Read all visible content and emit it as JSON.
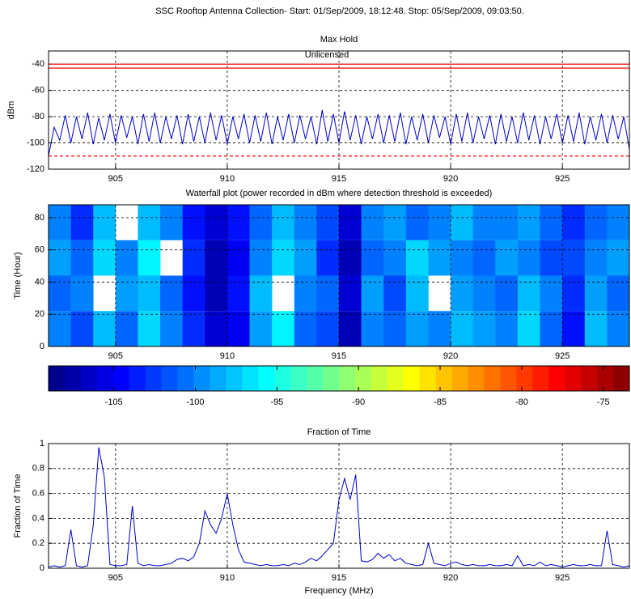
{
  "title": "SSC Rooftop Antenna Collection- Start: 01/Sep/2009, 18:12:48. Stop:  05/Sep/2009, 09:03:50.",
  "chart_data": [
    {
      "type": "line",
      "title": "Max Hold",
      "ylabel": "dBm",
      "annotation": "Unlicensed",
      "x": [
        902,
        902.25,
        902.5,
        902.75,
        903,
        903.25,
        903.5,
        903.75,
        904,
        904.25,
        904.5,
        904.75,
        905,
        905.25,
        905.5,
        905.75,
        906,
        906.25,
        906.5,
        906.75,
        907,
        907.25,
        907.5,
        907.75,
        908,
        908.25,
        908.5,
        908.75,
        909,
        909.25,
        909.5,
        909.75,
        910,
        910.25,
        910.5,
        910.75,
        911,
        911.25,
        911.5,
        911.75,
        912,
        912.25,
        912.5,
        912.75,
        913,
        913.25,
        913.5,
        913.75,
        914,
        914.25,
        914.5,
        914.75,
        915,
        915.25,
        915.5,
        915.75,
        916,
        916.25,
        916.5,
        916.75,
        917,
        917.25,
        917.5,
        917.75,
        918,
        918.25,
        918.5,
        918.75,
        919,
        919.25,
        919.5,
        919.75,
        920,
        920.25,
        920.5,
        920.75,
        921,
        921.25,
        921.5,
        921.75,
        922,
        922.25,
        922.5,
        922.75,
        923,
        923.25,
        923.5,
        923.75,
        924,
        924.25,
        924.5,
        924.75,
        925,
        925.25,
        925.5,
        925.75,
        926,
        926.25,
        926.5,
        926.75,
        927,
        927.25,
        927.5,
        927.75,
        928
      ],
      "values": [
        -110,
        -88,
        -98,
        -79,
        -100,
        -80,
        -97,
        -77,
        -101,
        -81,
        -98,
        -78,
        -100,
        -79,
        -96,
        -80,
        -101,
        -78,
        -99,
        -77,
        -100,
        -80,
        -97,
        -79,
        -101,
        -78,
        -99,
        -80,
        -100,
        -77,
        -98,
        -79,
        -101,
        -80,
        -97,
        -78,
        -100,
        -79,
        -99,
        -77,
        -101,
        -80,
        -98,
        -78,
        -100,
        -79,
        -97,
        -80,
        -101,
        -75,
        -99,
        -78,
        -100,
        -76,
        -98,
        -79,
        -101,
        -80,
        -97,
        -78,
        -100,
        -79,
        -99,
        -77,
        -101,
        -80,
        -98,
        -78,
        -100,
        -79,
        -96,
        -80,
        -101,
        -78,
        -99,
        -77,
        -100,
        -80,
        -97,
        -79,
        -101,
        -78,
        -99,
        -80,
        -100,
        -77,
        -98,
        -79,
        -101,
        -80,
        -97,
        -78,
        -100,
        -79,
        -99,
        -77,
        -101,
        -80,
        -98,
        -78,
        -100,
        -79,
        -97,
        -80,
        -105
      ],
      "color": "#0000cc",
      "reference_lines": [
        {
          "value": -40,
          "color": "#ff0000",
          "style": "solid"
        },
        {
          "value": -43,
          "color": "#ff0000",
          "style": "solid"
        },
        {
          "value": -110,
          "color": "#ff0000",
          "style": "dashed"
        }
      ],
      "xlim": [
        902,
        928
      ],
      "xticks": [
        905,
        910,
        915,
        920,
        925
      ],
      "ylim": [
        -120,
        -30
      ],
      "yticks": [
        -120,
        -100,
        -80,
        -60,
        -40
      ],
      "grid": true
    },
    {
      "type": "heatmap",
      "title": "Waterfall plot (power recorded in dBm where detection threshold is exceeded)",
      "ylabel": "Time (Hour)",
      "x_bins": [
        902,
        903,
        904,
        905,
        906,
        907,
        908,
        909,
        910,
        911,
        912,
        913,
        914,
        915,
        916,
        917,
        918,
        919,
        920,
        921,
        922,
        923,
        924,
        925,
        926,
        927,
        928
      ],
      "y_bins": [
        0,
        22,
        44,
        66,
        88
      ],
      "z": [
        [
          -100,
          -102,
          -98,
          -101,
          -97,
          -100,
          -103,
          -106,
          -105,
          -99,
          -96,
          -101,
          -102,
          -107,
          -100,
          -101,
          -99,
          -100,
          -98,
          -99,
          -100,
          -97,
          -101,
          -104,
          -98,
          -100
        ],
        [
          -101,
          -100,
          null,
          -99,
          -98,
          -101,
          -104,
          -107,
          -104,
          -98,
          null,
          -100,
          -101,
          -106,
          -99,
          -102,
          -98,
          null,
          -99,
          -100,
          -101,
          -98,
          -100,
          -103,
          -99,
          -101
        ],
        [
          -99,
          -101,
          -97,
          -100,
          -96,
          null,
          -103,
          -107,
          -105,
          -100,
          -97,
          -99,
          -103,
          -107,
          -101,
          -100,
          -97,
          -99,
          -100,
          -101,
          -99,
          -100,
          -102,
          -102,
          -100,
          -99
        ],
        [
          -100,
          -103,
          -98,
          null,
          -98,
          -100,
          -104,
          -106,
          -104,
          -101,
          -98,
          -100,
          -102,
          -106,
          -100,
          -99,
          -101,
          -100,
          -98,
          -100,
          -100,
          -99,
          -101,
          -103,
          -101,
          -100
        ]
      ],
      "xlim": [
        902,
        928
      ],
      "xticks": [
        905,
        910,
        915,
        920,
        925
      ],
      "ylim": [
        0,
        88
      ],
      "yticks": [
        0,
        20,
        40,
        60,
        80
      ],
      "grid": true,
      "colormap": "jet",
      "clim": [
        -109,
        -73.4
      ],
      "cticks": [
        -105,
        -100,
        -95,
        -90,
        -85,
        -80,
        -75
      ]
    },
    {
      "type": "line",
      "title": "Fraction of Time",
      "ylabel": "Fraction of Time",
      "xlabel": "Frequency (MHz)",
      "x": [
        902,
        902.25,
        902.5,
        902.75,
        903,
        903.25,
        903.5,
        903.75,
        904,
        904.25,
        904.5,
        904.75,
        905,
        905.25,
        905.5,
        905.75,
        906,
        906.25,
        906.5,
        906.75,
        907,
        907.25,
        907.5,
        907.75,
        908,
        908.25,
        908.5,
        908.75,
        909,
        909.25,
        909.5,
        909.75,
        910,
        910.25,
        910.5,
        910.75,
        911,
        911.25,
        911.5,
        911.75,
        912,
        912.25,
        912.5,
        912.75,
        913,
        913.25,
        913.5,
        913.75,
        914,
        914.25,
        914.5,
        914.75,
        915,
        915.25,
        915.5,
        915.75,
        916,
        916.25,
        916.5,
        916.75,
        917,
        917.25,
        917.5,
        917.75,
        918,
        918.25,
        918.5,
        918.75,
        919,
        919.25,
        919.5,
        919.75,
        920,
        920.25,
        920.5,
        920.75,
        921,
        921.25,
        921.5,
        921.75,
        922,
        922.25,
        922.5,
        922.75,
        923,
        923.25,
        923.5,
        923.75,
        924,
        924.25,
        924.5,
        924.75,
        925,
        925.25,
        925.5,
        925.75,
        926,
        926.25,
        926.5,
        926.75,
        927,
        927.25,
        927.5,
        927.75,
        928
      ],
      "values": [
        0.01,
        0.02,
        0.01,
        0.02,
        0.31,
        0.02,
        0.01,
        0.02,
        0.34,
        0.97,
        0.73,
        0.03,
        0.02,
        0.02,
        0.03,
        0.5,
        0.04,
        0.02,
        0.03,
        0.02,
        0.02,
        0.03,
        0.04,
        0.07,
        0.08,
        0.06,
        0.09,
        0.2,
        0.46,
        0.35,
        0.28,
        0.4,
        0.6,
        0.35,
        0.15,
        0.05,
        0.04,
        0.03,
        0.02,
        0.03,
        0.02,
        0.02,
        0.03,
        0.02,
        0.04,
        0.03,
        0.05,
        0.08,
        0.06,
        0.1,
        0.15,
        0.2,
        0.55,
        0.72,
        0.55,
        0.75,
        0.06,
        0.05,
        0.07,
        0.12,
        0.08,
        0.11,
        0.06,
        0.08,
        0.04,
        0.03,
        0.02,
        0.03,
        0.2,
        0.04,
        0.03,
        0.02,
        0.04,
        0.05,
        0.03,
        0.02,
        0.03,
        0.02,
        0.02,
        0.03,
        0.02,
        0.02,
        0.03,
        0.02,
        0.1,
        0.02,
        0.03,
        0.02,
        0.05,
        0.02,
        0.03,
        0.02,
        0.01,
        0.02,
        0.03,
        0.02,
        0.02,
        0.03,
        0.02,
        0.02,
        0.3,
        0.03,
        0.02,
        0.01,
        0.02
      ],
      "color": "#0000cc",
      "xlim": [
        902,
        928
      ],
      "xticks": [
        905,
        910,
        915,
        920,
        925
      ],
      "ylim": [
        0,
        1
      ],
      "yticks": [
        0,
        0.2,
        0.4,
        0.6,
        0.8,
        1
      ],
      "grid": true
    }
  ]
}
